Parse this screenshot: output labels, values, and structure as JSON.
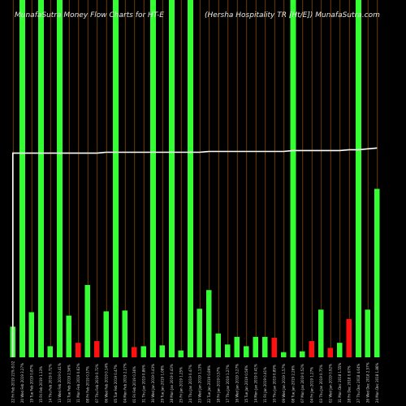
{
  "chart_data": {
    "type": "bar",
    "title_left": "MunafaSutra  Money Flow  Charts for HT-E",
    "title_right": "(Hersha  Hospitality TR [Ht/E])  MunafaSutra.com",
    "categories": [
      "22 Fri Feb 2019 21% 8.02",
      "20 Wed Feb 2019 3.27%",
      "19 Tue Feb 2019 0.87%",
      "15 Fri Feb 2019 1.13%",
      "14 Thu Feb 2019 0.72%",
      "13 Wed Feb 2019 0.41%",
      "12 Tue Feb 2019 2.56%",
      "11 Mon Feb 2019 0.62%",
      "08 Fri Feb 2019 0.37%",
      "07 Thu Feb 2019 0.72%",
      "06 Wed Feb 2019 0.14%",
      "05 Tue Feb 2019 0.47%",
      "04 Mon Feb 2019 2.27%",
      "01 Fri Feb 2019 0.36%",
      "31 Thu Jan 2019 0.86%",
      "30 Wed Jan 2019 0.43%",
      "29 Tue Jan 2019 1.08%",
      "28 Mon Jan 2019 0.43%",
      "25 Fri Jan 2019 1.25%",
      "24 Thu Jan 2019 0.47%",
      "23 Wed Jan 2019 1.13%",
      "22 Tue Jan 2019 0.89%",
      "18 Fri Jan 2019 0.57%",
      "17 Thu Jan 2019 1.27%",
      "16 Wed Jan 2019 3.27%",
      "15 Tue Jan 2019 0.56%",
      "14 Mon Jan 2019 0.41%",
      "11 Fri Jan 2019 0.41%",
      "10 Thu Jan 2019 0.89%",
      "09 Wed Jan 2019 1.57%",
      "08 Tue Jan 2019 2.26%",
      "07 Mon Jan 2019 0.52%",
      "04 Fri Jan 2019 1.27%",
      "03 Thu Jan 2019 0.75%",
      "02 Wed Jan 2019 0.92%",
      "31 Mon Dec 2018 1.55%",
      "28 Fri Dec 2018 0.67%",
      "27 Thu Dec 2018 4.64%",
      "26 Wed Dec 2018 2.57%",
      "24 Mon Dec 2018 1.86%"
    ],
    "bars": [
      {
        "value": 36,
        "color": "green",
        "tall": false
      },
      {
        "value": 100,
        "color": "green",
        "tall": true
      },
      {
        "value": 53,
        "color": "green",
        "tall": false
      },
      {
        "value": 100,
        "color": "green",
        "tall": true
      },
      {
        "value": 13,
        "color": "green",
        "tall": false
      },
      {
        "value": 100,
        "color": "green",
        "tall": true
      },
      {
        "value": 49,
        "color": "green",
        "tall": false
      },
      {
        "value": 17,
        "color": "red",
        "tall": false
      },
      {
        "value": 85,
        "color": "green",
        "tall": false
      },
      {
        "value": 19,
        "color": "red",
        "tall": false
      },
      {
        "value": 54,
        "color": "green",
        "tall": false
      },
      {
        "value": 100,
        "color": "green",
        "tall": true
      },
      {
        "value": 55,
        "color": "green",
        "tall": false
      },
      {
        "value": 12,
        "color": "red",
        "tall": false
      },
      {
        "value": 13,
        "color": "green",
        "tall": false
      },
      {
        "value": 100,
        "color": "green",
        "tall": true
      },
      {
        "value": 14,
        "color": "green",
        "tall": false
      },
      {
        "value": 100,
        "color": "green",
        "tall": true
      },
      {
        "value": 8,
        "color": "green",
        "tall": false
      },
      {
        "value": 100,
        "color": "green",
        "tall": true
      },
      {
        "value": 57,
        "color": "green",
        "tall": false
      },
      {
        "value": 79,
        "color": "green",
        "tall": false
      },
      {
        "value": 28,
        "color": "green",
        "tall": false
      },
      {
        "value": 15,
        "color": "green",
        "tall": false
      },
      {
        "value": 24,
        "color": "green",
        "tall": false
      },
      {
        "value": 13,
        "color": "green",
        "tall": false
      },
      {
        "value": 24,
        "color": "green",
        "tall": false
      },
      {
        "value": 24,
        "color": "green",
        "tall": false
      },
      {
        "value": 23,
        "color": "red",
        "tall": false
      },
      {
        "value": 6,
        "color": "green",
        "tall": false
      },
      {
        "value": 100,
        "color": "green",
        "tall": true
      },
      {
        "value": 7,
        "color": "green",
        "tall": false
      },
      {
        "value": 19,
        "color": "red",
        "tall": false
      },
      {
        "value": 56,
        "color": "green",
        "tall": false
      },
      {
        "value": 11,
        "color": "red",
        "tall": false
      },
      {
        "value": 17,
        "color": "green",
        "tall": false
      },
      {
        "value": 45,
        "color": "red",
        "tall": false
      },
      {
        "value": 100,
        "color": "green",
        "tall": true
      },
      {
        "value": 56,
        "color": "green",
        "tall": false
      },
      {
        "value": 198,
        "color": "green",
        "tall": false
      }
    ],
    "price_line": {
      "start_value": 0,
      "values": [
        240,
        240,
        240,
        240,
        240,
        240,
        240,
        240,
        240,
        240,
        241,
        241,
        241,
        241,
        241,
        241,
        241,
        241,
        241,
        241,
        241,
        242,
        242,
        242,
        242,
        242,
        242,
        242,
        242,
        242,
        243,
        243,
        243,
        243,
        243,
        243,
        244,
        244,
        245,
        246
      ],
      "color": "#ffffff"
    },
    "ylim": [
      0,
      420
    ],
    "grid": false,
    "colors": {
      "up": "#33ff33",
      "down": "#ff1111",
      "separator": "#8a4a00",
      "background": "#000000"
    }
  }
}
